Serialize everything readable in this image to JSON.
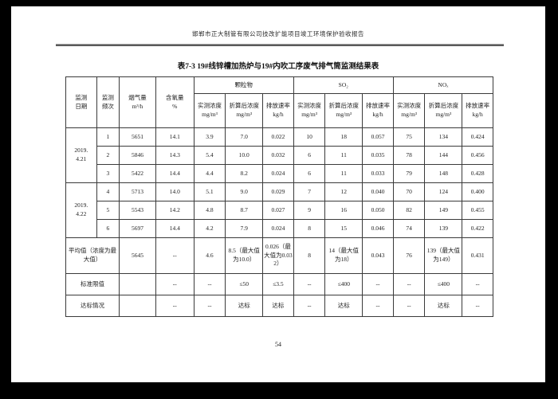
{
  "page": {
    "header_text": "邯郸市正大制管有限公司技改扩能项目竣工环境保护验收报告",
    "page_number": "54"
  },
  "table": {
    "title": "表7-3  19#线锌槽加热炉与19#内吹工序废气排气筒监测结果表",
    "header": {
      "date": "监测\n日期",
      "frequency": "监测\n频次",
      "flue_gas": "烟气量\nm³/h",
      "oxygen": "含氧量\n%",
      "groups": [
        "颗粒物",
        "SO₂",
        "NOₓ"
      ],
      "sub_measured": "实测浓度\nmg/m³",
      "sub_converted": "折算后浓度\nmg/m³",
      "sub_rate": "排放速率\nkg/h"
    },
    "body": [
      {
        "type": "data",
        "date": {
          "text": "2019.\n4.21",
          "span": 3
        },
        "cells": [
          "1",
          "5651",
          "14.1",
          "3.9",
          "7.0",
          "0.022",
          "10",
          "18",
          "0.057",
          "75",
          "134",
          "0.424"
        ]
      },
      {
        "type": "data",
        "cells": [
          "2",
          "5846",
          "14.3",
          "5.4",
          "10.0",
          "0.032",
          "6",
          "11",
          "0.035",
          "78",
          "144",
          "0.456"
        ]
      },
      {
        "type": "data",
        "cells": [
          "3",
          "5422",
          "14.4",
          "4.4",
          "8.2",
          "0.024",
          "6",
          "11",
          "0.033",
          "79",
          "148",
          "0.428"
        ]
      },
      {
        "type": "data",
        "date": {
          "text": "2019.\n4.22",
          "span": 3
        },
        "cells": [
          "4",
          "5713",
          "14.0",
          "5.1",
          "9.0",
          "0.029",
          "7",
          "12",
          "0.040",
          "70",
          "124",
          "0.400"
        ]
      },
      {
        "type": "data",
        "cells": [
          "5",
          "5543",
          "14.2",
          "4.8",
          "8.7",
          "0.027",
          "9",
          "16",
          "0.050",
          "82",
          "149",
          "0.455"
        ]
      },
      {
        "type": "data",
        "cells": [
          "6",
          "5697",
          "14.4",
          "4.2",
          "7.9",
          "0.024",
          "8",
          "15",
          "0.046",
          "74",
          "139",
          "0.422"
        ]
      },
      {
        "type": "avg",
        "label": "平均值（浓度为最大值）",
        "cells": [
          "5645",
          "--",
          "4.6",
          "8.5（最大值为10.0）",
          "0.026（最大值为0.032）",
          "8",
          "14（最大值为18）",
          "0.043",
          "76",
          "139（最大值为149）",
          "0.431"
        ]
      },
      {
        "type": "limit",
        "label": "标准限值",
        "cells": [
          "",
          "--",
          "--",
          "≤50",
          "≤3.5",
          "--",
          "≤400",
          "--",
          "--",
          "≤400",
          "--"
        ]
      },
      {
        "type": "status",
        "label": "达标情况",
        "cells": [
          "",
          "--",
          "--",
          "达标",
          "达标",
          "--",
          "达标",
          "--",
          "--",
          "达标",
          "--"
        ]
      }
    ]
  }
}
